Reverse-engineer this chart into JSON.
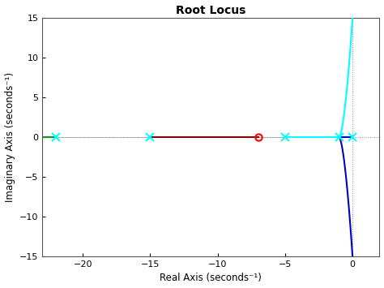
{
  "title": "Root Locus",
  "xlabel": "Real Axis (seconds⁻¹)",
  "ylabel": "Imaginary Axis (seconds⁻¹)",
  "xlim": [
    -23,
    2
  ],
  "ylim": [
    -15,
    15
  ],
  "xticks": [
    -20,
    -15,
    -10,
    -5,
    0
  ],
  "yticks": [
    -15,
    -10,
    -5,
    0,
    5,
    10,
    15
  ],
  "poles": [
    -22,
    -15,
    -5,
    -1,
    0
  ],
  "zeros": [
    -7
  ],
  "bg_color": "white",
  "dotted_color": "#888888",
  "figsize": [
    4.74,
    3.55
  ],
  "dpi": 100
}
